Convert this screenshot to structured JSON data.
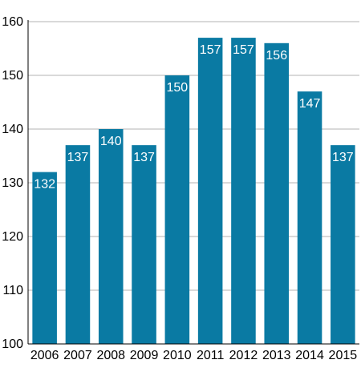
{
  "chart_data": {
    "type": "bar",
    "categories": [
      "2006",
      "2007",
      "2008",
      "2009",
      "2010",
      "2011",
      "2012",
      "2013",
      "2014",
      "2015"
    ],
    "values": [
      132,
      137,
      140,
      137,
      150,
      157,
      157,
      156,
      147,
      137
    ],
    "data_labels": [
      "132",
      "137",
      "140",
      "137",
      "150",
      "157",
      "157",
      "156",
      "147",
      "137"
    ],
    "y_ticks": [
      100,
      110,
      120,
      130,
      140,
      150,
      160
    ],
    "y_tick_labels": [
      "100",
      "110",
      "120",
      "130",
      "140",
      "150",
      "160"
    ],
    "ylim": [
      100,
      160
    ],
    "grid": true,
    "legend": "none",
    "title": "",
    "xlabel": "",
    "ylabel": ""
  },
  "colors": {
    "bar": "#0a7aa3",
    "grid": "#b3b3b3",
    "axis": "#000000",
    "bar_label": "#ffffff"
  }
}
